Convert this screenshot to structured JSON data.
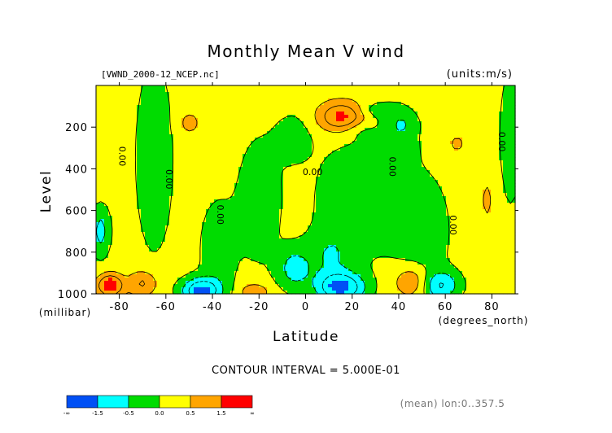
{
  "chart_data": {
    "type": "heatmap",
    "title": "Monthly Mean V wind",
    "file_label": "[VWND_2000-12_NCEP.nc]",
    "units_label": "(units:m/s)",
    "xlabel": "Latitude",
    "ylabel": "Level",
    "y_unit_label": "(millibar)",
    "x_unit_label": "(degrees_north)",
    "xlim": [
      -90,
      90
    ],
    "ylim": [
      1000,
      0
    ],
    "x_ticks": [
      "-80",
      "-60",
      "-40",
      "-20",
      "0",
      "20",
      "40",
      "60",
      "80"
    ],
    "x_tick_values": [
      -80,
      -60,
      -40,
      -20,
      0,
      20,
      40,
      60,
      80
    ],
    "y_ticks": [
      "200",
      "400",
      "600",
      "800",
      "1000"
    ],
    "y_tick_values": [
      200,
      400,
      600,
      800,
      1000
    ],
    "contour_interval_text": "CONTOUR INTERVAL = 5.000E-01",
    "footer_text": "(mean) lon:0..357.5",
    "contour_labels": [
      {
        "text": "0.00",
        "lat": -80,
        "lev": 340
      },
      {
        "text": "0.00",
        "lat": -60,
        "lev": 450
      },
      {
        "text": "0.00",
        "lat": -38,
        "lev": 620
      },
      {
        "text": "0.00",
        "lat": 3,
        "lev": 430
      },
      {
        "text": "0.00",
        "lat": 36,
        "lev": 390
      },
      {
        "text": "0.00",
        "lat": 62,
        "lev": 670
      },
      {
        "text": "0.00",
        "lat": 83,
        "lev": 270
      }
    ],
    "colorbar": {
      "colors": [
        "#0050f5",
        "#00ffff",
        "#00dc00",
        "#ffff00",
        "#ffa500",
        "#ff0000"
      ],
      "labels": [
        "-∞",
        "-1.5",
        "-0.5",
        "0.0",
        "0.5",
        "1.5",
        "∞"
      ]
    },
    "levels": [
      -1.0,
      -0.5,
      0.0,
      0.5,
      1.0
    ]
  }
}
